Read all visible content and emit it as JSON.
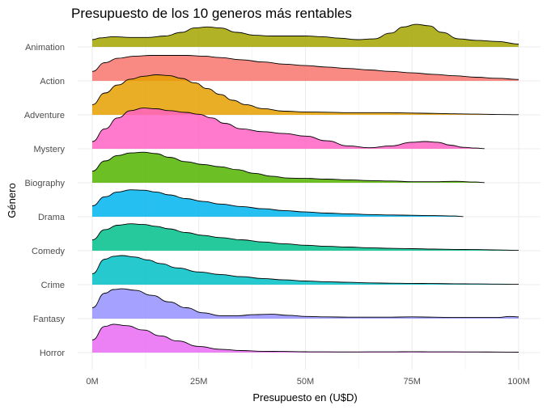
{
  "chart_data": {
    "type": "ridgeline",
    "title": "Presupuesto de los 10 generos más rentables",
    "xlabel": "Presupuesto en (U$D)",
    "ylabel": "Género",
    "xlim": [
      0,
      100
    ],
    "x_unit": "M USD",
    "x_ticks": [
      {
        "value": 0,
        "label": "0M"
      },
      {
        "value": 25,
        "label": "25M"
      },
      {
        "value": 50,
        "label": "50M"
      },
      {
        "value": 75,
        "label": "75M"
      },
      {
        "value": 100,
        "label": "100M"
      }
    ],
    "grid": true,
    "legend": "none",
    "series": [
      {
        "name": "Horror",
        "color": "#E76BF3",
        "x": [
          0,
          3,
          5,
          8,
          12,
          16,
          20,
          25,
          30,
          35,
          40,
          45,
          50,
          55,
          60,
          65,
          70,
          75,
          80,
          85,
          90,
          95,
          100
        ],
        "density": [
          0.35,
          0.72,
          0.78,
          0.74,
          0.62,
          0.46,
          0.32,
          0.17,
          0.09,
          0.055,
          0.035,
          0.03,
          0.022,
          0.02,
          0.018,
          0.02,
          0.02,
          0.025,
          0.02,
          0.02,
          0.018,
          0.016,
          0.012
        ]
      },
      {
        "name": "Fantasy",
        "color": "#9590FF",
        "x": [
          0,
          3,
          5,
          7,
          10,
          14,
          18,
          22,
          26,
          30,
          34,
          38,
          42,
          46,
          50,
          55,
          60,
          65,
          70,
          75,
          80,
          85,
          90,
          95,
          98,
          100
        ],
        "density": [
          0.3,
          0.7,
          0.8,
          0.82,
          0.78,
          0.64,
          0.46,
          0.3,
          0.16,
          0.08,
          0.08,
          0.11,
          0.12,
          0.09,
          0.06,
          0.05,
          0.04,
          0.04,
          0.04,
          0.05,
          0.04,
          0.03,
          0.03,
          0.03,
          0.06,
          0.05
        ]
      },
      {
        "name": "Crime",
        "color": "#00BFC4",
        "x": [
          0,
          3,
          5,
          7,
          10,
          13,
          16,
          20,
          25,
          30,
          35,
          40,
          45,
          50,
          55,
          60,
          65,
          70,
          75,
          80,
          85,
          90,
          95,
          100
        ],
        "density": [
          0.3,
          0.7,
          0.78,
          0.8,
          0.76,
          0.68,
          0.58,
          0.46,
          0.35,
          0.28,
          0.22,
          0.17,
          0.13,
          0.1,
          0.08,
          0.065,
          0.05,
          0.04,
          0.035,
          0.03,
          0.025,
          0.02,
          0.015,
          0.008
        ]
      },
      {
        "name": "Comedy",
        "color": "#00C08B",
        "x": [
          0,
          3,
          6,
          9,
          12,
          15,
          18,
          22,
          26,
          30,
          35,
          40,
          45,
          50,
          55,
          60,
          65,
          70,
          75,
          80,
          85,
          90,
          95,
          100
        ],
        "density": [
          0.3,
          0.58,
          0.7,
          0.74,
          0.72,
          0.67,
          0.6,
          0.5,
          0.42,
          0.36,
          0.3,
          0.24,
          0.19,
          0.15,
          0.12,
          0.1,
          0.08,
          0.065,
          0.055,
          0.045,
          0.035,
          0.03,
          0.02,
          0.01
        ]
      },
      {
        "name": "Drama",
        "color": "#00B4F0",
        "x": [
          0,
          3,
          6,
          9,
          12,
          15,
          18,
          22,
          26,
          30,
          35,
          40,
          45,
          50,
          55,
          60,
          65,
          70,
          75,
          80,
          85,
          87
        ],
        "density": [
          0.3,
          0.55,
          0.68,
          0.74,
          0.73,
          0.68,
          0.6,
          0.5,
          0.42,
          0.35,
          0.28,
          0.22,
          0.17,
          0.13,
          0.1,
          0.08,
          0.06,
          0.05,
          0.04,
          0.03,
          0.02,
          0.005
        ]
      },
      {
        "name": "Biography",
        "color": "#53B400",
        "x": [
          0,
          3,
          6,
          9,
          12,
          15,
          18,
          22,
          26,
          30,
          34,
          38,
          42,
          46,
          50,
          55,
          60,
          65,
          70,
          75,
          80,
          85,
          90,
          92
        ],
        "density": [
          0.32,
          0.6,
          0.75,
          0.82,
          0.84,
          0.8,
          0.7,
          0.58,
          0.5,
          0.44,
          0.36,
          0.26,
          0.18,
          0.13,
          0.12,
          0.1,
          0.08,
          0.06,
          0.05,
          0.03,
          0.03,
          0.04,
          0.02,
          0.005
        ]
      },
      {
        "name": "Mystery",
        "color": "#FF61C3",
        "x": [
          0,
          3,
          6,
          9,
          12,
          15,
          18,
          22,
          25,
          28,
          31,
          35,
          40,
          45,
          50,
          55,
          60,
          65,
          70,
          75,
          78,
          81,
          84,
          87,
          90,
          92
        ],
        "density": [
          0.2,
          0.55,
          0.85,
          1.05,
          1.12,
          1.1,
          1.05,
          1.0,
          0.95,
          0.85,
          0.7,
          0.55,
          0.47,
          0.42,
          0.35,
          0.22,
          0.08,
          0.03,
          0.08,
          0.18,
          0.2,
          0.18,
          0.1,
          0.04,
          0.02,
          0.005
        ]
      },
      {
        "name": "Adventure",
        "color": "#E69F00",
        "x": [
          0,
          3,
          6,
          9,
          12,
          15,
          18,
          21,
          24,
          27,
          30,
          33,
          36,
          40,
          45,
          50,
          55,
          60,
          65,
          70,
          75,
          80,
          85,
          90,
          95,
          100
        ],
        "density": [
          0.28,
          0.6,
          0.82,
          0.98,
          1.06,
          1.1,
          1.08,
          1.0,
          0.88,
          0.72,
          0.56,
          0.4,
          0.28,
          0.17,
          0.1,
          0.08,
          0.07,
          0.06,
          0.06,
          0.06,
          0.05,
          0.04,
          0.03,
          0.02,
          0.01,
          0.005
        ]
      },
      {
        "name": "Action",
        "color": "#F8766D",
        "x": [
          0,
          3,
          6,
          10,
          14,
          18,
          22,
          26,
          30,
          35,
          40,
          45,
          50,
          55,
          60,
          65,
          70,
          75,
          80,
          85,
          90,
          95,
          100
        ],
        "density": [
          0.26,
          0.5,
          0.62,
          0.68,
          0.7,
          0.7,
          0.7,
          0.68,
          0.64,
          0.58,
          0.52,
          0.46,
          0.42,
          0.38,
          0.34,
          0.3,
          0.26,
          0.22,
          0.18,
          0.14,
          0.1,
          0.07,
          0.04
        ]
      },
      {
        "name": "Animation",
        "color": "#A3A500",
        "x": [
          0,
          2,
          5,
          9,
          13,
          17,
          21,
          24,
          27,
          30,
          34,
          38,
          42,
          46,
          50,
          54,
          58,
          62,
          66,
          70,
          73,
          76,
          79,
          82,
          86,
          90,
          95,
          100
        ],
        "density": [
          0.2,
          0.25,
          0.28,
          0.26,
          0.26,
          0.3,
          0.4,
          0.52,
          0.55,
          0.52,
          0.4,
          0.32,
          0.3,
          0.3,
          0.3,
          0.28,
          0.24,
          0.2,
          0.22,
          0.38,
          0.55,
          0.62,
          0.58,
          0.4,
          0.22,
          0.18,
          0.15,
          0.08
        ]
      }
    ]
  }
}
